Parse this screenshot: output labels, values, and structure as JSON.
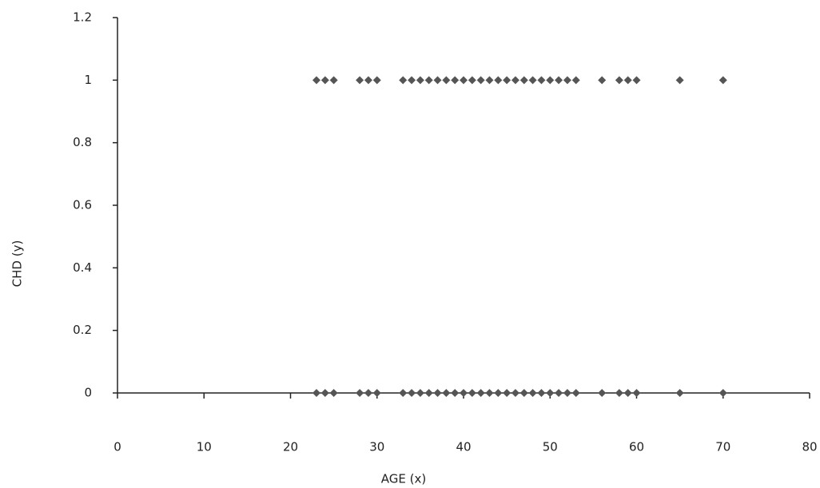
{
  "chart_data": {
    "type": "scatter",
    "x_label": "AGE (x)",
    "y_label": "CHD (y)",
    "x": [
      23,
      24,
      25,
      28,
      29,
      30,
      33,
      34,
      35,
      36,
      37,
      38,
      39,
      40,
      41,
      42,
      43,
      44,
      45,
      46,
      47,
      48,
      49,
      50,
      51,
      52,
      53,
      56,
      58,
      59,
      60,
      65,
      70,
      23,
      24,
      25,
      28,
      29,
      30,
      33,
      34,
      35,
      36,
      37,
      38,
      39,
      40,
      41,
      42,
      43,
      44,
      45,
      46,
      47,
      48,
      49,
      50,
      51,
      52,
      53,
      56,
      58,
      59,
      60,
      65,
      70
    ],
    "y": [
      1,
      1,
      1,
      1,
      1,
      1,
      1,
      1,
      1,
      1,
      1,
      1,
      1,
      1,
      1,
      1,
      1,
      1,
      1,
      1,
      1,
      1,
      1,
      1,
      1,
      1,
      1,
      1,
      1,
      1,
      1,
      1,
      1,
      0,
      0,
      0,
      0,
      0,
      0,
      0,
      0,
      0,
      0,
      0,
      0,
      0,
      0,
      0,
      0,
      0,
      0,
      0,
      0,
      0,
      0,
      0,
      0,
      0,
      0,
      0,
      0,
      0,
      0,
      0,
      0,
      0
    ],
    "color": "#555555",
    "xlim": [
      0,
      80
    ],
    "xticks": [
      0,
      10,
      20,
      30,
      40,
      50,
      60,
      70,
      80
    ],
    "ylim": [
      0,
      1.2
    ],
    "yticks": [
      0,
      0.2,
      0.4,
      0.6,
      0.8,
      1,
      1.2
    ]
  }
}
